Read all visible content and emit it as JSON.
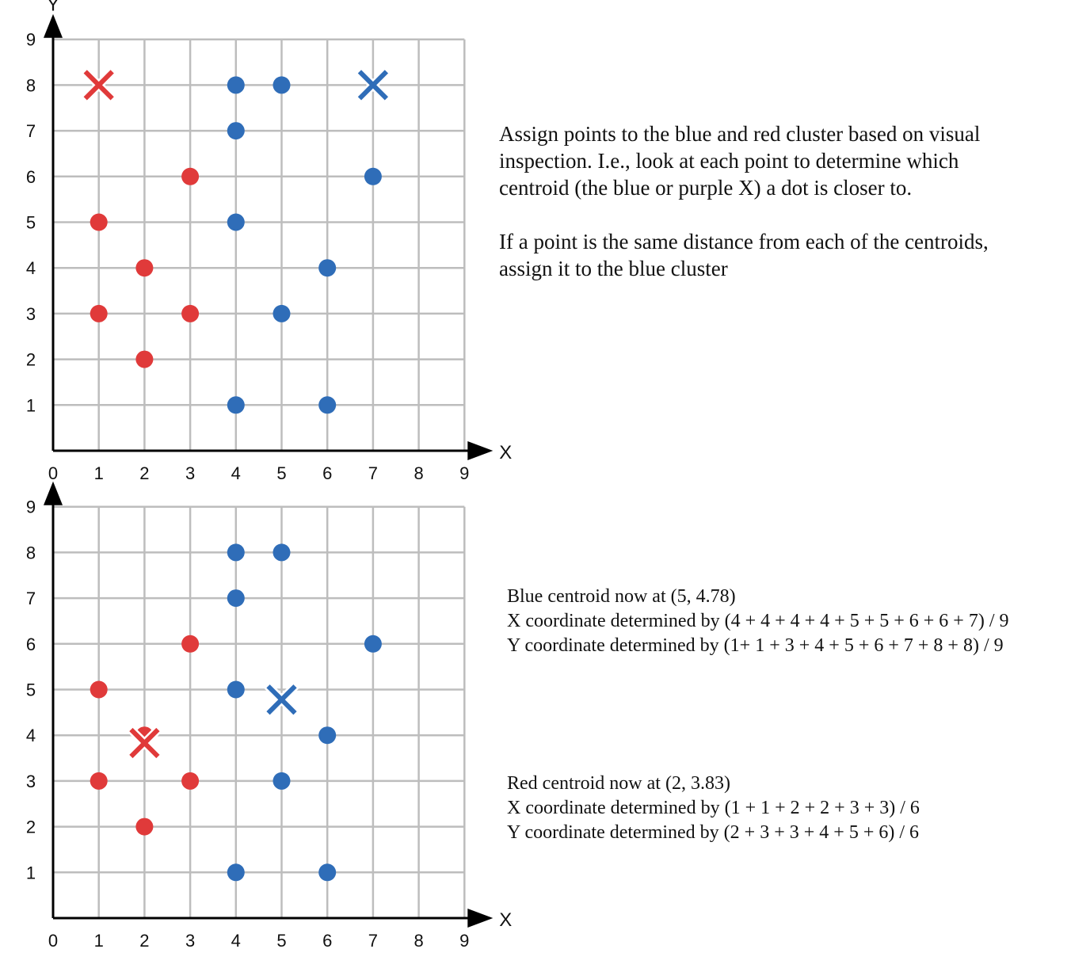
{
  "chart_data": [
    {
      "type": "scatter",
      "title": "",
      "xlabel": "X",
      "ylabel": "Y",
      "xlim": [
        0,
        9
      ],
      "ylim": [
        0,
        9
      ],
      "xticks": [
        "0",
        "1",
        "2",
        "3",
        "4",
        "5",
        "6",
        "7",
        "8",
        "9"
      ],
      "yticks": [
        "1",
        "2",
        "3",
        "4",
        "5",
        "6",
        "7",
        "8",
        "9"
      ],
      "grid": true,
      "series": [
        {
          "color": "#2f6db8",
          "marker": "circle",
          "points": [
            [
              4,
              8
            ],
            [
              5,
              8
            ],
            [
              4,
              7
            ],
            [
              7,
              6
            ],
            [
              4,
              5
            ],
            [
              6,
              4
            ],
            [
              5,
              3
            ],
            [
              4,
              1
            ],
            [
              6,
              1
            ]
          ]
        },
        {
          "color": "#e03a3a",
          "marker": "circle",
          "points": [
            [
              3,
              6
            ],
            [
              1,
              5
            ],
            [
              2,
              4
            ],
            [
              1,
              3
            ],
            [
              3,
              3
            ],
            [
              2,
              2
            ]
          ]
        },
        {
          "color": "#e03a3a",
          "marker": "x",
          "points": [
            [
              1,
              8
            ]
          ]
        },
        {
          "color": "#2f6db8",
          "marker": "x",
          "points": [
            [
              7,
              8
            ]
          ]
        }
      ]
    },
    {
      "type": "scatter",
      "title": "",
      "xlabel": "X",
      "ylabel": "",
      "xlim": [
        0,
        9
      ],
      "ylim": [
        0,
        9
      ],
      "xticks": [
        "0",
        "1",
        "2",
        "3",
        "4",
        "5",
        "6",
        "7",
        "8",
        "9"
      ],
      "yticks": [
        "1",
        "2",
        "3",
        "4",
        "5",
        "6",
        "7",
        "8",
        "9"
      ],
      "grid": true,
      "series": [
        {
          "color": "#2f6db8",
          "marker": "circle",
          "points": [
            [
              4,
              8
            ],
            [
              5,
              8
            ],
            [
              4,
              7
            ],
            [
              7,
              6
            ],
            [
              4,
              5
            ],
            [
              6,
              4
            ],
            [
              5,
              3
            ],
            [
              4,
              1
            ],
            [
              6,
              1
            ]
          ]
        },
        {
          "color": "#e03a3a",
          "marker": "circle",
          "points": [
            [
              3,
              6
            ],
            [
              1,
              5
            ],
            [
              2,
              4
            ],
            [
              1,
              3
            ],
            [
              3,
              3
            ],
            [
              2,
              2
            ]
          ]
        },
        {
          "color": "#2f6db8",
          "marker": "x",
          "points": [
            [
              5,
              4.78
            ]
          ]
        },
        {
          "color": "#e03a3a",
          "marker": "x",
          "points": [
            [
              2,
              3.83
            ]
          ]
        }
      ]
    }
  ],
  "annotations": {
    "instructions_1": "Assign points to the blue and red cluster based on visual",
    "instructions_2": "inspection. I.e., look at each point to determine which",
    "instructions_3": "centroid (the blue or purple X) a dot is closer to.",
    "tie_rule_1": "If a point is the same distance from each of the centroids,",
    "tie_rule_2": "assign it to the blue cluster",
    "blue_centroid": "Blue centroid now at (5, 4.78)",
    "blue_x_calc": "X coordinate determined by (4 + 4 + 4 + 4 + 5 + 5 + 6 + 6 + 7) / 9",
    "blue_y_calc": "Y coordinate determined by (1+ 1 + 3 + 4 + 5 + 6 + 7 + 8 + 8) / 9",
    "red_centroid": "Red centroid now at (2, 3.83)",
    "red_x_calc": "X coordinate determined by (1 + 1 + 2 + 2 + 3 + 3) / 6",
    "red_y_calc": "Y coordinate determined by (2 + 3 + 3 + 4 + 5 + 6) / 6"
  }
}
